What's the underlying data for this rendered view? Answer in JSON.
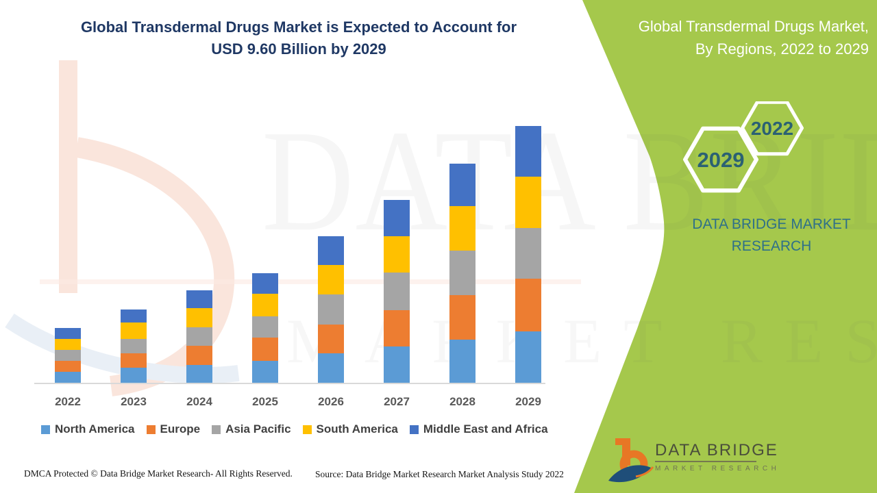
{
  "page": {
    "background": "#FFFFFF",
    "accent_green": "#A5C84C"
  },
  "main_title": {
    "line1": "Global Transdermal Drugs Market is Expected to Account for",
    "line2": "USD 9.60 Billion by 2029",
    "color": "#1F3864"
  },
  "sidebar": {
    "title_line1": "Global Transdermal Drugs Market,",
    "title_line2": "By Regions, 2022 to 2029",
    "hexagons": [
      {
        "year": "2022"
      },
      {
        "year": "2029"
      }
    ],
    "brand_text": "DATA BRIDGE MARKET RESEARCH",
    "text_color_on_green": "#2E7089",
    "hexagon_number_color": "#2B6173"
  },
  "logo": {
    "line1": "DATA BRIDGE",
    "line2": "MARKET RESEARCH",
    "orange": "#E87725",
    "blue": "#1F4E79"
  },
  "watermarks": {
    "row1": "DATA BRIDGE",
    "row2": "MARKET RESEARCH"
  },
  "footer": {
    "left_text": "DMCA Protected © Data Bridge Market Research- All Rights Reserved.",
    "source_text": "Source: Data Bridge Market Research Market Analysis Study 2022"
  },
  "chart_data": {
    "type": "bar",
    "stacked": true,
    "unit": "USD Billion",
    "title": "Global Transdermal Drugs Market, By Regions, 2022 to 2029",
    "annotation": "USD 9.60 Billion by 2029",
    "categories": [
      "2022",
      "2023",
      "2024",
      "2025",
      "2026",
      "2027",
      "2028",
      "2029"
    ],
    "series": [
      {
        "name": "North America",
        "color": "#5B9BD5",
        "values": [
          0.41,
          0.56,
          0.67,
          0.82,
          1.11,
          1.36,
          1.6,
          1.92
        ]
      },
      {
        "name": "Europe",
        "color": "#ED7D31",
        "values": [
          0.42,
          0.55,
          0.71,
          0.87,
          1.07,
          1.36,
          1.68,
          1.96
        ]
      },
      {
        "name": "Asia Pacific",
        "color": "#A5A5A5",
        "values": [
          0.41,
          0.54,
          0.7,
          0.78,
          1.13,
          1.41,
          1.66,
          1.9
        ]
      },
      {
        "name": "South America",
        "color": "#FFC000",
        "values": [
          0.4,
          0.6,
          0.7,
          0.86,
          1.09,
          1.34,
          1.66,
          1.92
        ]
      },
      {
        "name": "Middle East and Africa",
        "color": "#4472C4",
        "values": [
          0.4,
          0.5,
          0.67,
          0.77,
          1.09,
          1.37,
          1.6,
          1.9
        ]
      }
    ],
    "totals": [
      2.04,
      2.75,
      3.45,
      4.1,
      5.49,
      6.84,
      8.2,
      9.6
    ],
    "ylim": [
      0,
      9.6
    ],
    "grid": false,
    "y_axis_visible": false,
    "legend_position": "bottom",
    "x_axis_label_color": "#595959",
    "legend_text_color": "#404040"
  }
}
